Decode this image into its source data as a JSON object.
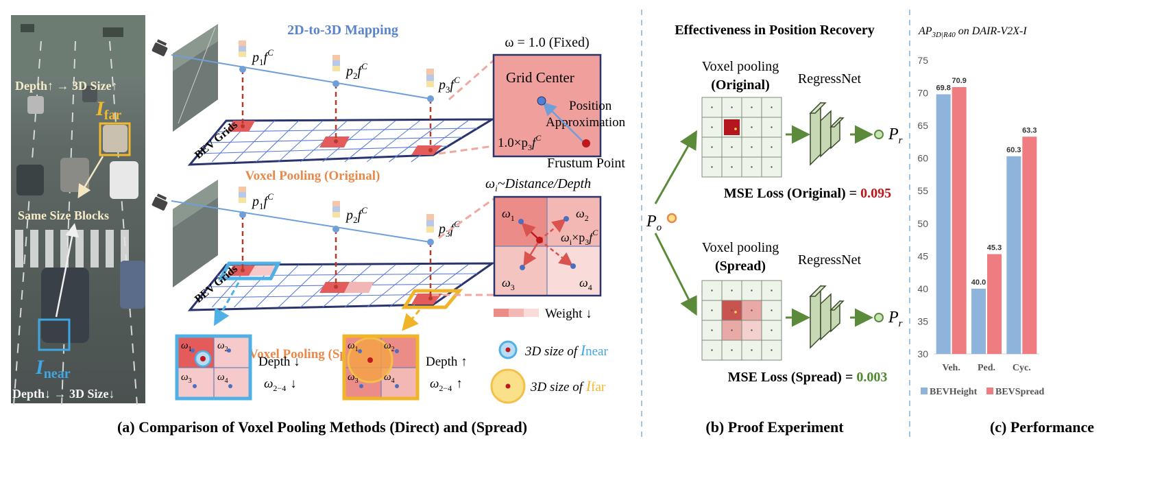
{
  "panel_a": {
    "title_2d3d": "2D-to-3D Mapping",
    "photo": {
      "depth_up_label": "Depth↑ → 3D Size↑",
      "far_label": "I",
      "far_sub": "far",
      "same_size_label": "Same Size Blocks",
      "near_label": "I",
      "near_sub": "near",
      "depth_down_label": "Depth↓ → 3D Size↓"
    },
    "bev_grids_label": "BEV Grids",
    "points": [
      "p",
      "p",
      "p"
    ],
    "point_subs": [
      "1",
      "2",
      "3"
    ],
    "feature_symbol": "f",
    "feature_sup": "C",
    "orig_caption": "Voxel Pooling (Original)",
    "spread_caption": "Voxel Pooling (Spread)",
    "zoom_top": {
      "omega_label": "ω = 1.0 (Fixed)",
      "grid_center": "Grid Center",
      "position": "Position",
      "approximation": "Approximation",
      "product": "1.0×p",
      "product_sub": "3",
      "frustum_point": "Frustum Point"
    },
    "zoom_bottom": {
      "omega_label": "ω",
      "omega_sub": "i",
      "omega_rest": "~Distance/Depth",
      "w1": "ω",
      "w1s": "1",
      "w2": "ω",
      "w2s": "2",
      "w3": "ω",
      "w3s": "3",
      "w4": "ω",
      "w4s": "4",
      "wi_product": "ω",
      "wi_product_sub": "i",
      "wi_product_rest": "×p",
      "wi_product_sub2": "3",
      "weight_label": "Weight ↓"
    },
    "small_left": {
      "w1": "ω",
      "w1s": "1",
      "w2": "ω",
      "w2s": "2",
      "w3": "ω",
      "w3s": "3",
      "w4": "ω",
      "w4s": "4",
      "depth_text": "Depth ↓",
      "omega_text": "ω",
      "omega_sub": "2−4",
      "omega_arrow": "↓"
    },
    "small_right": {
      "w1": "ω",
      "w1s": "1",
      "w2": "ω",
      "w2s": "2",
      "w3": "ω",
      "w3s": "3",
      "w4": "ω",
      "w4s": "4",
      "depth_text": "Depth ↑",
      "omega_text": "ω",
      "omega_sub": "2−4",
      "omega_arrow": "↑"
    },
    "legend_near": {
      "prefix": "3D size of ",
      "sym": "I",
      "sub": "near"
    },
    "legend_far": {
      "prefix": "3D size of ",
      "sym": "I",
      "sub": "far"
    },
    "caption": "(a) Comparison of Voxel Pooling Methods (Direct) and (Spread)"
  },
  "panel_b": {
    "title": "Effectiveness in Position Recovery",
    "po_label": "P",
    "po_sub": "o",
    "orig_block_line1": "Voxel pooling",
    "orig_block_line2": "(Original)",
    "spread_block_line1": "Voxel pooling",
    "spread_block_line2": "(Spread)",
    "regress_net_top": "RegressNet",
    "regress_net_bottom": "RegressNet",
    "pr_label": "P",
    "pr_sub": "r",
    "mse_orig_label": "MSE Loss (Original) = ",
    "mse_orig_value": "0.095",
    "mse_spread_label": "MSE Loss (Spread) = ",
    "mse_spread_value": "0.003",
    "colors": {
      "orig_value": "#c0171d",
      "spread_value": "#4e8a2f"
    },
    "caption": "(b) Proof Experiment"
  },
  "panel_c": {
    "title_main": "AP",
    "title_sub": "3D|R40",
    "title_rest": " on DAIR-V2X-I",
    "caption": "(c) Performance"
  },
  "chart_data": {
    "type": "bar",
    "title": "AP3D|R40 on DAIR-V2X-I",
    "categories": [
      "Veh.",
      "Ped.",
      "Cyc."
    ],
    "series": [
      {
        "name": "BEVHeight",
        "values": [
          69.8,
          40.0,
          60.3
        ],
        "labels": [
          "69.8",
          "40.0",
          "60.3"
        ],
        "color": "#8fb4dc"
      },
      {
        "name": "BEVSpread",
        "values": [
          70.9,
          45.3,
          63.3
        ],
        "labels": [
          "70.9",
          "45.3",
          "63.3"
        ],
        "color": "#ee7c80"
      }
    ],
    "ylim": [
      30,
      75
    ],
    "yticks": [
      "30",
      "35",
      "40",
      "45",
      "50",
      "55",
      "60",
      "65",
      "70",
      "75"
    ],
    "legend_position": "bottom",
    "grid": false
  }
}
